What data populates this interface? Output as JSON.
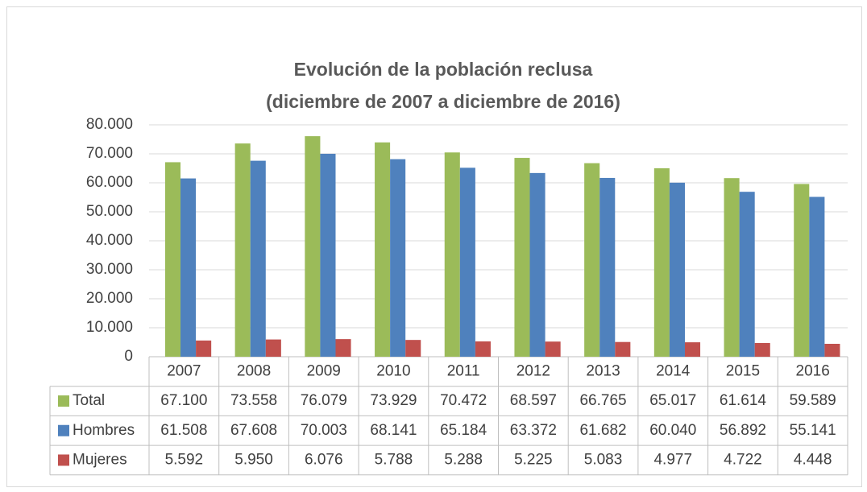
{
  "chart_data": {
    "type": "bar",
    "title": "Evolución de la población reclusa",
    "subtitle": "(diciembre de 2007 a diciembre de 2016)",
    "categories": [
      "2007",
      "2008",
      "2009",
      "2010",
      "2011",
      "2012",
      "2013",
      "2014",
      "2015",
      "2016"
    ],
    "series": [
      {
        "name": "Total",
        "color": "#9bbb59",
        "values": [
          67100,
          73558,
          76079,
          73929,
          70472,
          68597,
          66765,
          65017,
          61614,
          59589
        ],
        "value_labels": [
          "67.100",
          "73.558",
          "76.079",
          "73.929",
          "70.472",
          "68.597",
          "66.765",
          "65.017",
          "61.614",
          "59.589"
        ]
      },
      {
        "name": "Hombres",
        "color": "#4f81bd",
        "values": [
          61508,
          67608,
          70003,
          68141,
          65184,
          63372,
          61682,
          60040,
          56892,
          55141
        ],
        "value_labels": [
          "61.508",
          "67.608",
          "70.003",
          "68.141",
          "65.184",
          "63.372",
          "61.682",
          "60.040",
          "56.892",
          "55.141"
        ]
      },
      {
        "name": "Mujeres",
        "color": "#c0504d",
        "values": [
          5592,
          5950,
          6076,
          5788,
          5288,
          5225,
          5083,
          4977,
          4722,
          4448
        ],
        "value_labels": [
          "5.592",
          "5.950",
          "6.076",
          "5.788",
          "5.288",
          "5.225",
          "5.083",
          "4.977",
          "4.722",
          "4.448"
        ]
      }
    ],
    "ylim": [
      0,
      80000
    ],
    "yticks": [
      0,
      {
        "value": 10000,
        "label": "10.000"
      },
      {
        "value": 20000,
        "label": "20.000"
      },
      {
        "value": 30000,
        "label": "30.000"
      },
      {
        "value": 40000,
        "label": "40.000"
      },
      {
        "value": 50000,
        "label": "50.000"
      },
      {
        "value": 60000,
        "label": "60.000"
      },
      {
        "value": 70000,
        "label": "70.000"
      },
      {
        "value": 80000,
        "label": "80.000"
      }
    ],
    "grid": true
  }
}
